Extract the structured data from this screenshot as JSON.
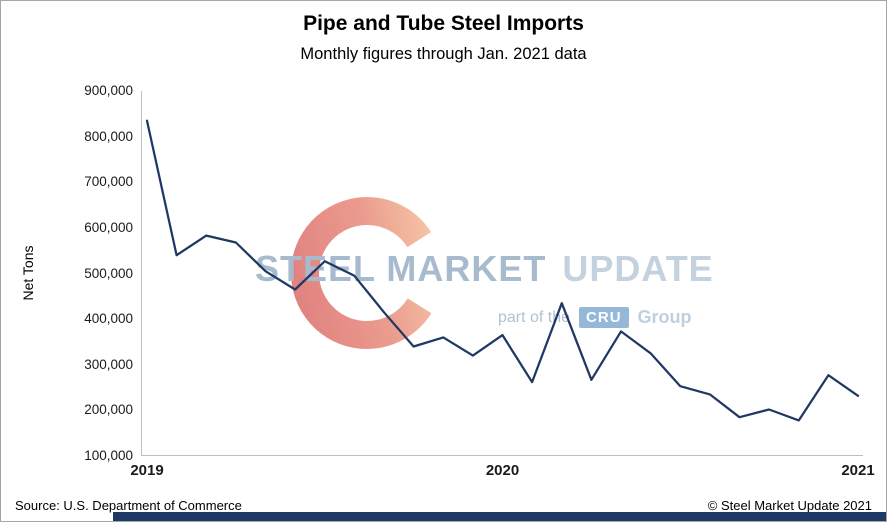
{
  "header": {
    "title": "Pipe and Tube Steel Imports",
    "subtitle": "Monthly figures through Jan. 2021 data"
  },
  "chart_data": {
    "type": "line",
    "title": "Pipe and Tube Steel Imports",
    "subtitle": "Monthly figures through Jan. 2021 data",
    "xlabel": "",
    "ylabel": "Net Tons",
    "series_name": "Pipe and tube steel imports (net tons)",
    "x": [
      "Jan-19",
      "Feb-19",
      "Mar-19",
      "Apr-19",
      "May-19",
      "Jun-19",
      "Jul-19",
      "Aug-19",
      "Sep-19",
      "Oct-19",
      "Nov-19",
      "Dec-19",
      "Jan-20",
      "Feb-20",
      "Mar-20",
      "Apr-20",
      "May-20",
      "Jun-20",
      "Jul-20",
      "Aug-20",
      "Sep-20",
      "Oct-20",
      "Nov-20",
      "Dec-20",
      "Jan-21"
    ],
    "values": [
      835000,
      540000,
      583000,
      568000,
      505000,
      465000,
      527000,
      495000,
      415000,
      340000,
      360000,
      320000,
      365000,
      262000,
      435000,
      267000,
      373000,
      325000,
      253000,
      235000,
      185000,
      202000,
      178000,
      277000,
      232000
    ],
    "ylim": [
      100000,
      900000
    ],
    "ytick_step": 100000,
    "ytick_labels": [
      "100,000",
      "200,000",
      "300,000",
      "400,000",
      "500,000",
      "600,000",
      "700,000",
      "800,000",
      "900,000"
    ],
    "xtick_labels": [
      "2019",
      "2020",
      "2021"
    ],
    "xtick_positions": [
      0,
      12,
      24
    ],
    "grid": false,
    "legend": "none"
  },
  "watermark": {
    "line1_part1": "STEEL MARKET",
    "line1_part2": "UPDATE",
    "line2_prefix": "part of the",
    "line2_badge": "CRU",
    "line2_suffix": "Group"
  },
  "footer": {
    "source": "Source: U.S. Department of Commerce",
    "copyright": "© Steel Market Update 2021"
  },
  "colors": {
    "line": "#1F3864",
    "bottom_bar": "#1F3864",
    "axis": "#BFBFBF",
    "cru_badge": "#2E74B5"
  }
}
